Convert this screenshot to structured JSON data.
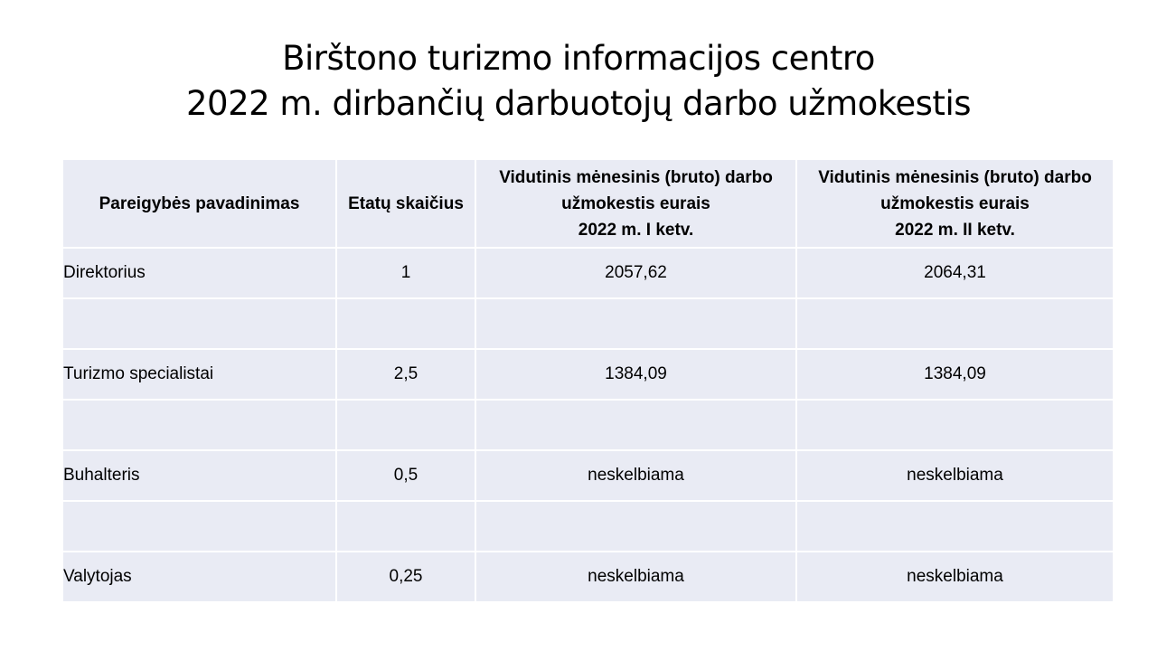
{
  "title": {
    "line1": "Birštono turizmo informacijos centro",
    "line2": "2022 m. dirbančių  darbuotojų darbo užmokestis"
  },
  "table": {
    "headers": {
      "position": "Pareigybės pavadinimas",
      "positions_count": "Etatų skaičius",
      "q1": {
        "line1": "Vidutinis mėnesinis (bruto) darbo",
        "line2": "užmokestis eurais",
        "line3": "2022 m. I ketv."
      },
      "q2": {
        "line1": "Vidutinis mėnesinis (bruto) darbo",
        "line2": "užmokestis eurais",
        "line3": "2022 m. II ketv."
      }
    },
    "rows": [
      {
        "position": "Direktorius",
        "count": "1",
        "q1": "2057,62",
        "q2": "2064,31"
      },
      {
        "position": "",
        "count": "",
        "q1": "",
        "q2": ""
      },
      {
        "position": "Turizmo specialistai",
        "count": "2,5",
        "q1": "1384,09",
        "q2": "1384,09"
      },
      {
        "position": "",
        "count": "",
        "q1": "",
        "q2": ""
      },
      {
        "position": "Buhalteris",
        "count": "0,5",
        "q1": "neskelbiama",
        "q2": "neskelbiama"
      },
      {
        "position": "",
        "count": "",
        "q1": "",
        "q2": ""
      },
      {
        "position": "Valytojas",
        "count": "0,25",
        "q1": "neskelbiama",
        "q2": "neskelbiama"
      }
    ]
  },
  "colors": {
    "cell_background": "#e9ebf4",
    "cell_border": "#ffffff"
  }
}
